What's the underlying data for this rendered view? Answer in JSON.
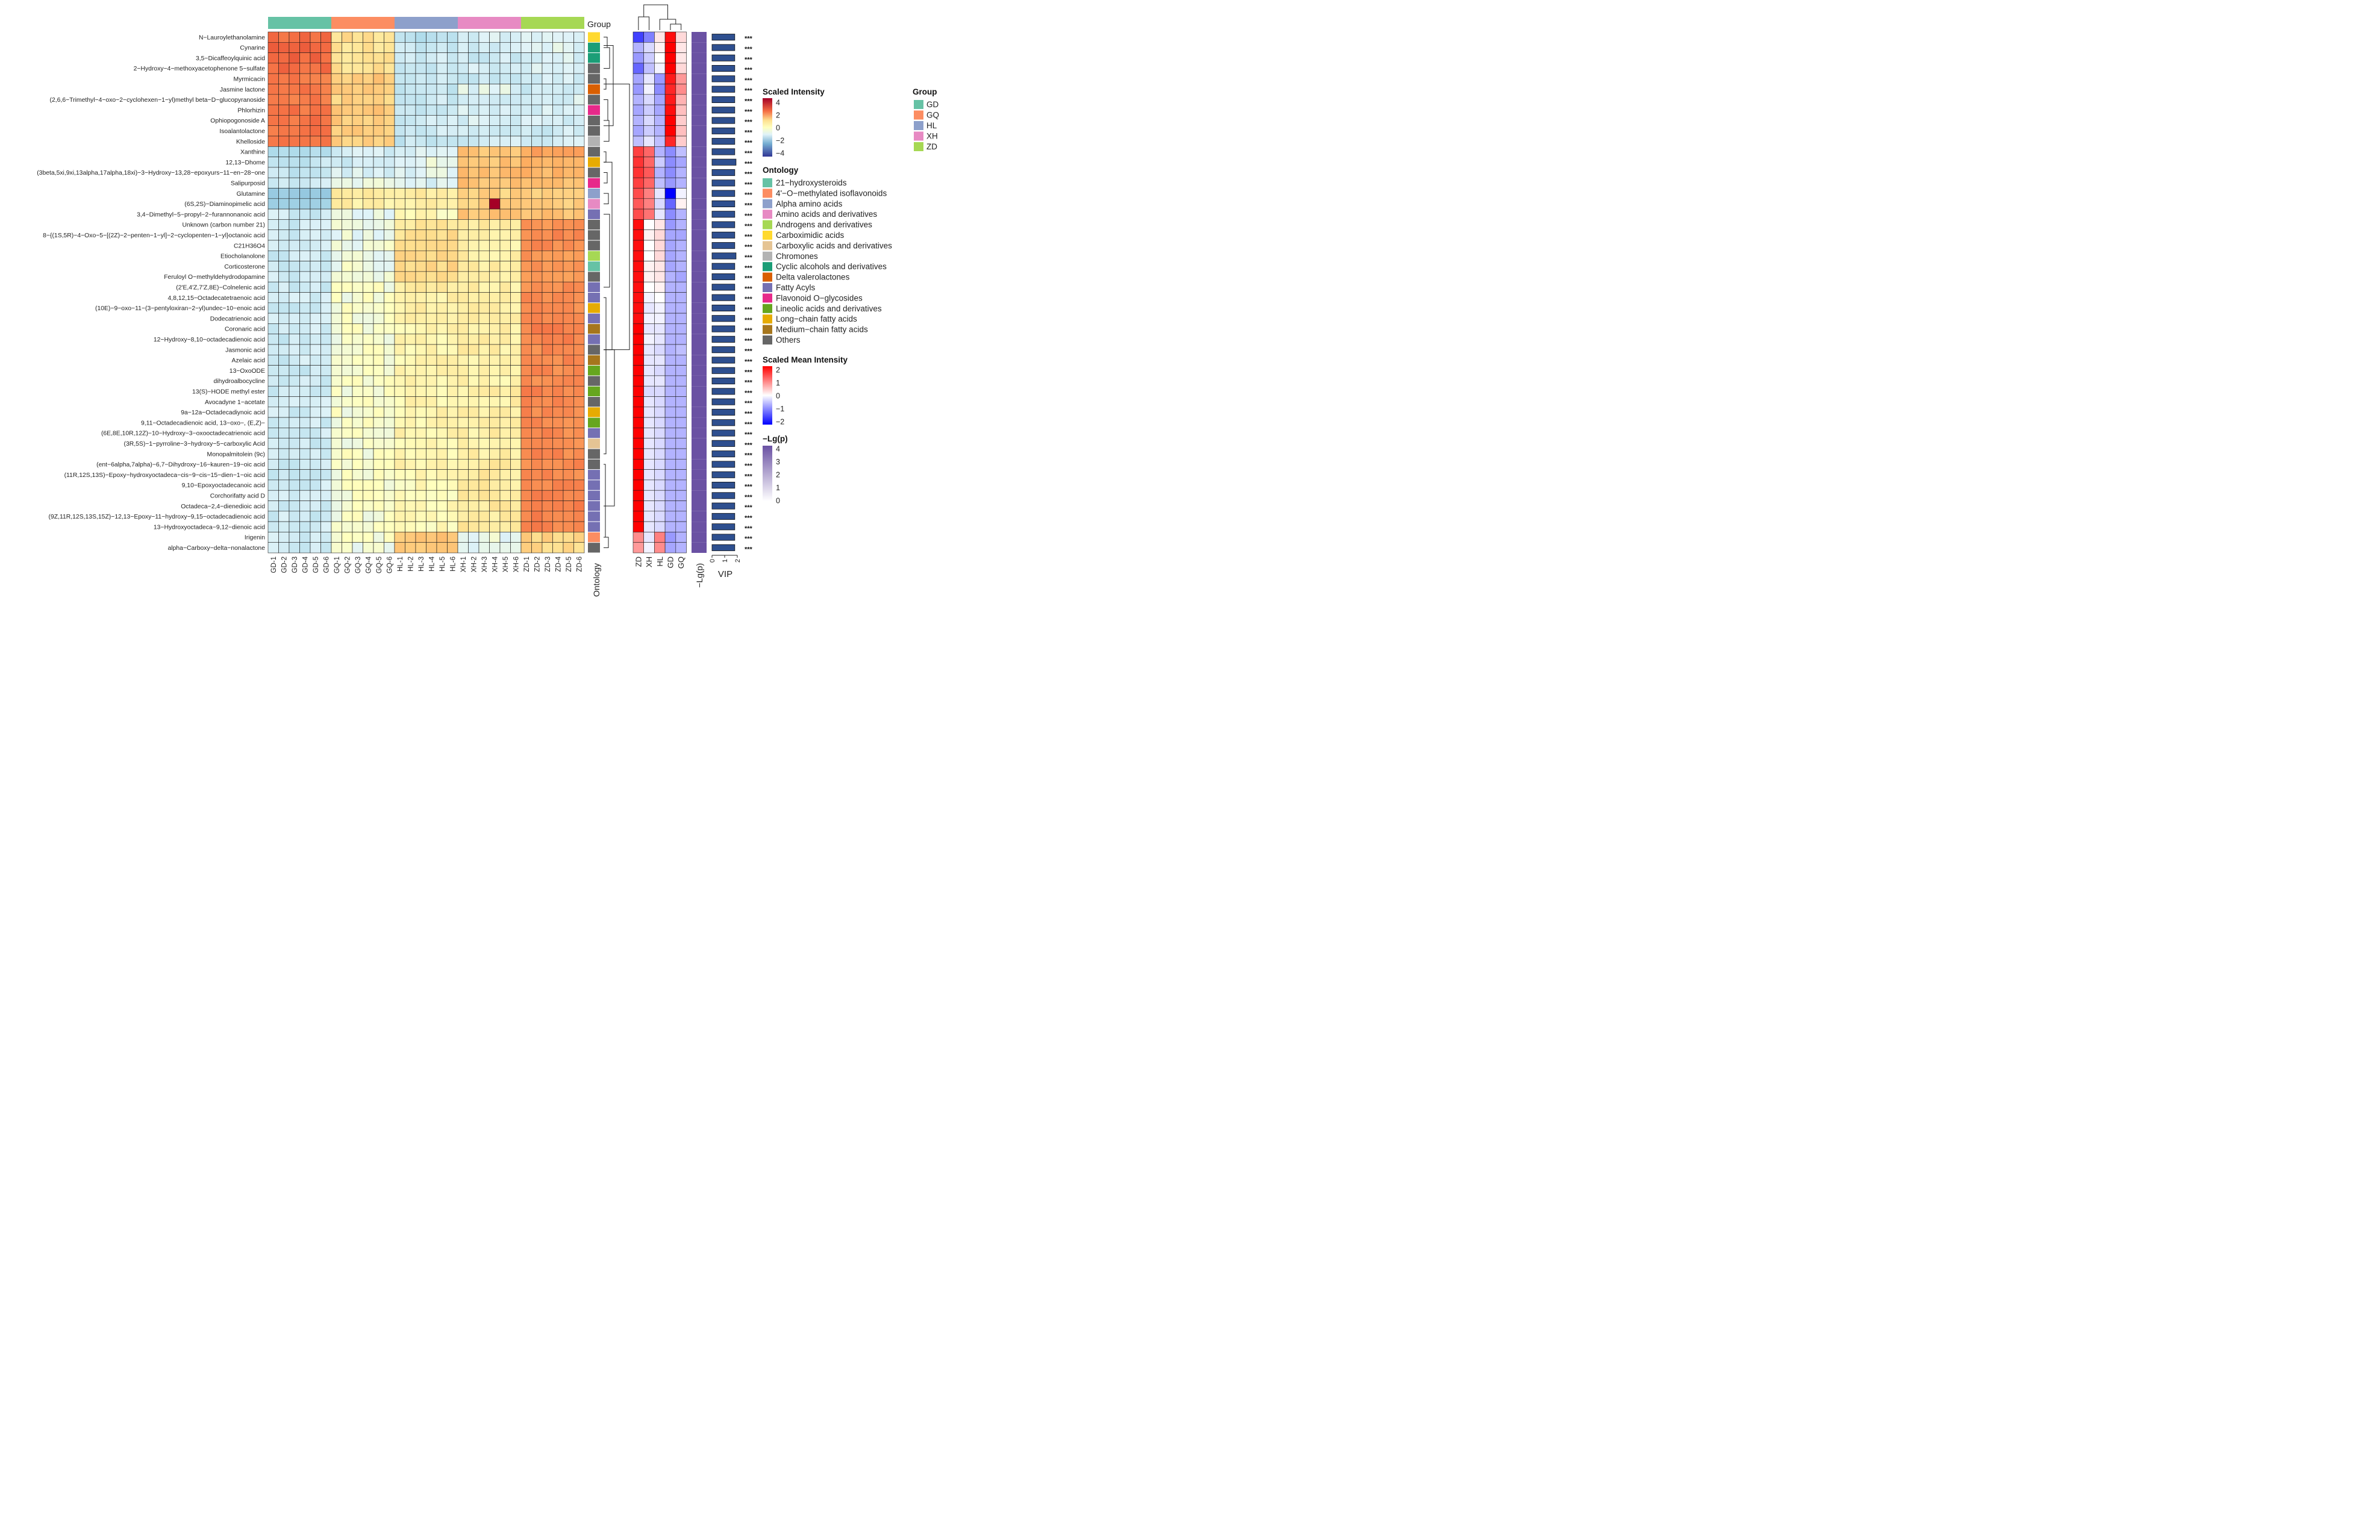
{
  "chart_data": {
    "type": "heatmap",
    "groups": [
      "GD",
      "GQ",
      "HL",
      "XH",
      "ZD"
    ],
    "group_colors": {
      "GD": "#66c2a5",
      "GQ": "#fc8d62",
      "HL": "#8da0cb",
      "XH": "#e78ac3",
      "ZD": "#a6d854"
    },
    "samples": [
      "GD-1",
      "GD-2",
      "GD-3",
      "GD-4",
      "GD-5",
      "GD-6",
      "GQ-1",
      "GQ-2",
      "GQ-3",
      "GQ-4",
      "GQ-5",
      "GQ-6",
      "HL-1",
      "HL-2",
      "HL-3",
      "HL-4",
      "HL-5",
      "HL-6",
      "XH-1",
      "XH-2",
      "XH-3",
      "XH-4",
      "XH-5",
      "XH-6",
      "ZD-1",
      "ZD-2",
      "ZD-3",
      "ZD-4",
      "ZD-5",
      "ZD-6"
    ],
    "metabolites": [
      {
        "name": "N−Lauroylethanolamine",
        "onto": "Carboximidic acids",
        "pattern": [
          2.2,
          0.6,
          -0.8,
          -0.5,
          -0.4
        ],
        "mean": [
          -1.5,
          -1.0,
          0.2,
          1.9,
          0.3
        ]
      },
      {
        "name": "Cynarine",
        "onto": "Cyclic alcohols and derivatives",
        "pattern": [
          2.4,
          0.5,
          -0.7,
          -0.6,
          -0.4
        ],
        "mean": [
          -0.6,
          -0.3,
          0.1,
          2.0,
          0.2
        ]
      },
      {
        "name": "3,5−Dicaffeoylquinic acid",
        "onto": "Cyclic alcohols and derivatives",
        "pattern": [
          2.3,
          0.5,
          -0.6,
          -0.6,
          -0.5
        ],
        "mean": [
          -0.8,
          -0.4,
          0.0,
          2.0,
          0.2
        ]
      },
      {
        "name": "2−Hydroxy−4−methoxyacetophenone 5−sulfate",
        "onto": "Others",
        "pattern": [
          2.2,
          0.6,
          -0.7,
          -0.5,
          -0.5
        ],
        "mean": [
          -1.2,
          -0.5,
          -0.1,
          2.0,
          0.3
        ]
      },
      {
        "name": "Myrmicacin",
        "onto": "Others",
        "pattern": [
          2.0,
          0.9,
          -0.7,
          -0.6,
          -0.5
        ],
        "mean": [
          -0.7,
          -0.2,
          -0.8,
          1.8,
          0.8
        ]
      },
      {
        "name": "Jasmine lactone",
        "onto": "Delta valerolactones",
        "pattern": [
          2.0,
          0.9,
          -0.7,
          -0.4,
          -0.6
        ],
        "mean": [
          -0.8,
          -0.1,
          -0.9,
          1.7,
          0.9
        ]
      },
      {
        "name": "(2,6,6−Trimethyl−4−oxo−2−cyclohexen−1−yl)methyl beta−D−glucopyranoside",
        "onto": "Others",
        "pattern": [
          2.0,
          0.8,
          -0.6,
          -0.5,
          -0.5
        ],
        "mean": [
          -0.6,
          -0.3,
          -0.7,
          1.8,
          0.6
        ]
      },
      {
        "name": "Phlorhizin",
        "onto": "Flavonoid O−glycosides",
        "pattern": [
          2.1,
          0.9,
          -0.6,
          -0.5,
          -0.5
        ],
        "mean": [
          -0.7,
          -0.4,
          -0.7,
          1.9,
          0.5
        ]
      },
      {
        "name": "Ophiopogonoside A",
        "onto": "Others",
        "pattern": [
          2.1,
          0.9,
          -0.6,
          -0.5,
          -0.5
        ],
        "mean": [
          -0.6,
          -0.3,
          -0.6,
          2.0,
          0.4
        ]
      },
      {
        "name": "Isoalantolactone",
        "onto": "Others",
        "pattern": [
          2.1,
          0.9,
          -0.6,
          -0.5,
          -0.6
        ],
        "mean": [
          -0.7,
          -0.4,
          -0.6,
          2.0,
          0.5
        ]
      },
      {
        "name": "Khelloside",
        "onto": "Chromones",
        "pattern": [
          2.0,
          0.8,
          -0.7,
          -0.6,
          -0.5
        ],
        "mean": [
          -0.5,
          -0.2,
          -0.5,
          1.7,
          0.4
        ]
      },
      {
        "name": "Xanthine",
        "onto": "Others",
        "pattern": [
          -1.0,
          -0.5,
          -0.4,
          1.0,
          1.4
        ],
        "mean": [
          1.5,
          1.2,
          -0.6,
          -0.9,
          -0.5
        ]
      },
      {
        "name": "12,13−Dhome",
        "onto": "Long−chain fatty acids",
        "pattern": [
          -0.7,
          -0.6,
          -0.3,
          1.0,
          1.2
        ],
        "mean": [
          1.6,
          1.2,
          -0.4,
          -0.9,
          -0.7
        ]
      },
      {
        "name": "(3beta,5xi,9xi,13alpha,17alpha,18xi)−3−Hydroxy−13,28−epoxyurs−11−en−28−one",
        "onto": "Others",
        "pattern": [
          -0.7,
          -0.5,
          -0.4,
          1.1,
          1.2
        ],
        "mean": [
          1.6,
          1.3,
          -0.6,
          -0.9,
          -0.6
        ]
      },
      {
        "name": "Salipurposid",
        "onto": "Flavonoid O−glycosides",
        "pattern": [
          -0.6,
          -0.3,
          -0.5,
          1.0,
          1.1
        ],
        "mean": [
          1.5,
          1.2,
          -0.5,
          -0.8,
          -0.6
        ]
      },
      {
        "name": "Glutamine",
        "onto": "Alpha amino acids",
        "pattern": [
          -1.5,
          0.4,
          0.4,
          0.8,
          0.9
        ],
        "mean": [
          1.4,
          1.0,
          -0.2,
          -2.0,
          -0.1
        ]
      },
      {
        "name": "(6S,2S)−Diaminopimelic acid",
        "onto": "Amino acids and derivatives",
        "pattern": [
          -1.3,
          0.3,
          0.3,
          0.8,
          0.8
        ],
        "mean": [
          1.3,
          1.0,
          -0.3,
          -1.2,
          0.1
        ]
      },
      {
        "name": "3,4−Dimethyl−5−propyl−2−furannonanoic acid",
        "onto": "Fatty Acyls",
        "pattern": [
          -0.6,
          -0.3,
          0.1,
          1.0,
          1.0
        ],
        "mean": [
          1.4,
          1.1,
          -0.2,
          -0.9,
          -0.6
        ]
      },
      {
        "name": "Unknown (carbon number 21)",
        "onto": "Others",
        "pattern": [
          -0.6,
          -0.3,
          0.5,
          0.4,
          1.7
        ],
        "mean": [
          1.9,
          0.0,
          0.2,
          -0.8,
          -0.6
        ]
      },
      {
        "name": "8−{(1S,5R)−4−Oxo−5−[(2Z)−2−penten−1−yl]−2−cyclopenten−1−yl}octanoic acid",
        "onto": "Others",
        "pattern": [
          -0.6,
          -0.3,
          0.6,
          0.3,
          1.8
        ],
        "mean": [
          1.9,
          0.1,
          0.3,
          -0.7,
          -0.7
        ]
      },
      {
        "name": "C21H36O4",
        "onto": "Others",
        "pattern": [
          -0.6,
          -0.2,
          0.6,
          0.2,
          1.8
        ],
        "mean": [
          1.9,
          0.0,
          0.3,
          -0.7,
          -0.6
        ]
      },
      {
        "name": "Etiocholanolone",
        "onto": "Androgens and derivatives",
        "pattern": [
          -0.6,
          -0.2,
          0.7,
          0.3,
          1.6
        ],
        "mean": [
          1.9,
          0.0,
          0.3,
          -0.7,
          -0.6
        ]
      },
      {
        "name": "Corticosterone",
        "onto": "21−hydroxysteroids",
        "pattern": [
          -0.6,
          -0.2,
          0.7,
          0.3,
          1.6
        ],
        "mean": [
          1.9,
          0.1,
          0.2,
          -0.7,
          -0.6
        ]
      },
      {
        "name": "Feruloyl O−methyldehydrodopamine",
        "onto": "Others",
        "pattern": [
          -0.6,
          -0.2,
          0.7,
          0.3,
          1.5
        ],
        "mean": [
          1.9,
          0.1,
          0.2,
          -0.6,
          -0.7
        ]
      },
      {
        "name": "(2'E,4'Z,7'Z,8E)−Colnelenic acid",
        "onto": "Fatty Acyls",
        "pattern": [
          -0.6,
          -0.1,
          0.4,
          0.3,
          1.7
        ],
        "mean": [
          1.9,
          0.0,
          0.1,
          -0.6,
          -0.6
        ]
      },
      {
        "name": "4,8,12,15−Octadecatetraenoic acid",
        "onto": "Fatty Acyls",
        "pattern": [
          -0.6,
          -0.1,
          0.3,
          0.3,
          1.8
        ],
        "mean": [
          1.9,
          -0.1,
          0.0,
          -0.6,
          -0.6
        ]
      },
      {
        "name": "(10E)−9−oxo−11−(3−pentyloxiran−2−yl)undec−10−enoic acid",
        "onto": "Long−chain fatty acids",
        "pattern": [
          -0.6,
          -0.1,
          0.3,
          0.3,
          1.8
        ],
        "mean": [
          1.9,
          -0.2,
          -0.1,
          -0.6,
          -0.6
        ]
      },
      {
        "name": "Dodecatrienoic acid",
        "onto": "Fatty Acyls",
        "pattern": [
          -0.6,
          -0.1,
          0.3,
          0.3,
          1.9
        ],
        "mean": [
          1.9,
          -0.1,
          -0.1,
          -0.6,
          -0.6
        ]
      },
      {
        "name": "Coronaric acid",
        "onto": "Medium−chain fatty acids",
        "pattern": [
          -0.6,
          -0.1,
          0.2,
          0.3,
          1.9
        ],
        "mean": [
          2.0,
          -0.2,
          -0.2,
          -0.6,
          -0.6
        ]
      },
      {
        "name": "12−Hydroxy−8,10−octadecadienoic acid",
        "onto": "Fatty Acyls",
        "pattern": [
          -0.6,
          -0.1,
          0.2,
          0.3,
          1.9
        ],
        "mean": [
          2.0,
          -0.1,
          -0.2,
          -0.6,
          -0.6
        ]
      },
      {
        "name": "Jasmonic acid",
        "onto": "Others",
        "pattern": [
          -0.6,
          -0.1,
          0.2,
          0.3,
          1.8
        ],
        "mean": [
          2.0,
          -0.2,
          -0.3,
          -0.6,
          -0.5
        ]
      },
      {
        "name": "Azelaic acid",
        "onto": "Medium−chain fatty acids",
        "pattern": [
          -0.6,
          -0.1,
          0.2,
          0.3,
          1.8
        ],
        "mean": [
          2.0,
          -0.2,
          -0.2,
          -0.6,
          -0.6
        ]
      },
      {
        "name": "13−OxoODE",
        "onto": "Lineolic acids and derivatives",
        "pattern": [
          -0.6,
          -0.1,
          0.2,
          0.3,
          1.8
        ],
        "mean": [
          2.0,
          -0.2,
          -0.3,
          -0.6,
          -0.6
        ]
      },
      {
        "name": "dihydroalbocycline",
        "onto": "Others",
        "pattern": [
          -0.6,
          -0.1,
          0.2,
          0.2,
          1.8
        ],
        "mean": [
          2.0,
          -0.2,
          -0.2,
          -0.6,
          -0.6
        ]
      },
      {
        "name": "13(S)−HODE methyl ester",
        "onto": "Lineolic acids and derivatives",
        "pattern": [
          -0.6,
          -0.1,
          0.2,
          0.3,
          1.9
        ],
        "mean": [
          2.0,
          -0.3,
          -0.3,
          -0.6,
          -0.6
        ]
      },
      {
        "name": "Avocadyne 1−acetate",
        "onto": "Others",
        "pattern": [
          -0.6,
          -0.1,
          0.2,
          0.3,
          1.8
        ],
        "mean": [
          2.0,
          -0.2,
          -0.3,
          -0.6,
          -0.6
        ]
      },
      {
        "name": "9a−12a−Octadecadiynoic acid",
        "onto": "Long−chain fatty acids",
        "pattern": [
          -0.6,
          -0.1,
          0.2,
          0.3,
          1.8
        ],
        "mean": [
          2.0,
          -0.2,
          -0.3,
          -0.6,
          -0.6
        ]
      },
      {
        "name": "9,11−Octadecadienoic acid, 13−oxo−, (E,Z)−",
        "onto": "Lineolic acids and derivatives",
        "pattern": [
          -0.6,
          -0.1,
          0.2,
          0.3,
          1.8
        ],
        "mean": [
          2.0,
          -0.2,
          -0.3,
          -0.6,
          -0.6
        ]
      },
      {
        "name": "(6E,8E,10R,12Z)−10−Hydroxy−3−oxooctadecatrienoic acid",
        "onto": "Fatty Acyls",
        "pattern": [
          -0.6,
          -0.1,
          0.2,
          0.3,
          1.8
        ],
        "mean": [
          2.0,
          -0.2,
          -0.3,
          -0.6,
          -0.6
        ]
      },
      {
        "name": "(3R,5S)−1−pyrroline−3−hydroxy−5−carboxylic Acid",
        "onto": "Carboxylic acids and derivatives",
        "pattern": [
          -0.6,
          -0.1,
          0.2,
          0.2,
          1.8
        ],
        "mean": [
          2.0,
          -0.2,
          -0.3,
          -0.6,
          -0.6
        ]
      },
      {
        "name": "Monopalmitolein (9c)",
        "onto": "Others",
        "pattern": [
          -0.6,
          -0.1,
          0.2,
          0.3,
          1.8
        ],
        "mean": [
          2.0,
          -0.2,
          -0.3,
          -0.6,
          -0.6
        ]
      },
      {
        "name": "(ent−6alpha,7alpha)−6,7−Dihydroxy−16−kauren−19−oic acid",
        "onto": "Others",
        "pattern": [
          -0.6,
          -0.1,
          0.2,
          0.4,
          1.8
        ],
        "mean": [
          2.0,
          -0.2,
          -0.3,
          -0.6,
          -0.6
        ]
      },
      {
        "name": "(11R,12S,13S)−Epoxy−hydroxyoctadeca−cis−9−cis−15−dien−1−oic acid",
        "onto": "Fatty Acyls",
        "pattern": [
          -0.6,
          -0.1,
          0.1,
          0.4,
          1.8
        ],
        "mean": [
          2.0,
          -0.2,
          -0.3,
          -0.6,
          -0.6
        ]
      },
      {
        "name": "9,10−Epoxyoctadecanoic acid",
        "onto": "Fatty Acyls",
        "pattern": [
          -0.6,
          -0.1,
          0.1,
          0.4,
          1.8
        ],
        "mean": [
          2.0,
          -0.2,
          -0.3,
          -0.6,
          -0.6
        ]
      },
      {
        "name": "Corchorifatty acid D",
        "onto": "Fatty Acyls",
        "pattern": [
          -0.6,
          -0.1,
          0.1,
          0.4,
          1.9
        ],
        "mean": [
          2.0,
          -0.2,
          -0.3,
          -0.6,
          -0.6
        ]
      },
      {
        "name": "Octadeca−2,4−dienedioic acid",
        "onto": "Fatty Acyls",
        "pattern": [
          -0.6,
          -0.1,
          0.1,
          0.4,
          1.9
        ],
        "mean": [
          2.0,
          -0.2,
          -0.3,
          -0.6,
          -0.6
        ]
      },
      {
        "name": "(9Z,11R,12S,13S,15Z)−12,13−Epoxy−11−hydroxy−9,15−octadecadienoic acid",
        "onto": "Fatty Acyls",
        "pattern": [
          -0.6,
          -0.1,
          0.1,
          0.4,
          1.9
        ],
        "mean": [
          2.0,
          -0.2,
          -0.3,
          -0.6,
          -0.6
        ]
      },
      {
        "name": "13−Hydroxyoctadeca−9,12−dienoic acid",
        "onto": "Fatty Acyls",
        "pattern": [
          -0.6,
          -0.1,
          0.1,
          0.5,
          1.9
        ],
        "mean": [
          2.0,
          -0.2,
          -0.3,
          -0.6,
          -0.6
        ]
      },
      {
        "name": "Irigenin",
        "onto": "4'−O−methylated isoflavonoids",
        "pattern": [
          -0.6,
          -0.1,
          1.0,
          -0.3,
          0.8
        ],
        "mean": [
          0.9,
          -0.2,
          1.0,
          -0.8,
          -0.6
        ]
      },
      {
        "name": "alpha−Carboxy−delta−nonalactone",
        "onto": "Others",
        "pattern": [
          -0.6,
          -0.2,
          1.0,
          -0.3,
          0.7
        ],
        "mean": [
          0.8,
          -0.1,
          0.9,
          -0.7,
          -0.6
        ]
      }
    ],
    "outliers": [
      {
        "metabolite": 16,
        "sample": 21,
        "value": 4.0
      }
    ],
    "mean_columns": [
      "ZD",
      "XH",
      "HL",
      "GD",
      "GQ"
    ],
    "neglogp_value": 4.0,
    "vip_values": [
      1.8,
      1.8,
      1.8,
      1.8,
      1.8,
      1.8,
      1.8,
      1.8,
      1.8,
      1.8,
      1.8,
      1.8,
      1.9,
      1.8,
      1.8,
      1.8,
      1.8,
      1.8,
      1.8,
      1.8,
      1.8,
      1.9,
      1.8,
      1.8,
      1.8,
      1.8,
      1.8,
      1.8,
      1.8,
      1.8,
      1.8,
      1.8,
      1.8,
      1.8,
      1.8,
      1.8,
      1.8,
      1.8,
      1.8,
      1.8,
      1.8,
      1.8,
      1.8,
      1.8,
      1.8,
      1.8,
      1.8,
      1.8,
      1.8,
      1.8
    ],
    "vip_axis": {
      "ticks": [
        "0",
        "1",
        "2"
      ],
      "label": "VIP",
      "max": 2
    },
    "significance": "***",
    "neglogp_label": "−Lg(p)",
    "group_label": "Group",
    "ontology_label": "Ontology",
    "legends": {
      "scaled_intensity": {
        "title": "Scaled Intensity",
        "ticks": [
          "4",
          "2",
          "0",
          "−2",
          "−4"
        ]
      },
      "group": {
        "title": "Group"
      },
      "ontology": {
        "title": "Ontology",
        "items": [
          {
            "name": "21−hydroxysteroids",
            "color": "#66c2a5"
          },
          {
            "name": "4'−O−methylated isoflavonoids",
            "color": "#fc8d62"
          },
          {
            "name": "Alpha amino acids",
            "color": "#8da0cb"
          },
          {
            "name": "Amino acids and derivatives",
            "color": "#e78ac3"
          },
          {
            "name": "Androgens and derivatives",
            "color": "#a6d854"
          },
          {
            "name": "Carboximidic acids",
            "color": "#ffd92f"
          },
          {
            "name": "Carboxylic acids and derivatives",
            "color": "#e5c494"
          },
          {
            "name": "Chromones",
            "color": "#b3b3b3"
          },
          {
            "name": "Cyclic alcohols and derivatives",
            "color": "#1b9e77"
          },
          {
            "name": "Delta valerolactones",
            "color": "#d95f02"
          },
          {
            "name": "Fatty Acyls",
            "color": "#7570b3"
          },
          {
            "name": "Flavonoid O−glycosides",
            "color": "#e7298a"
          },
          {
            "name": "Lineolic acids and derivatives",
            "color": "#66a61e"
          },
          {
            "name": "Long−chain fatty acids",
            "color": "#e6ab02"
          },
          {
            "name": "Medium−chain fatty acids",
            "color": "#a6761d"
          },
          {
            "name": "Others",
            "color": "#666666"
          }
        ]
      },
      "scaled_mean": {
        "title": "Scaled Mean Intensity",
        "ticks": [
          "2",
          "1",
          "0",
          "−1",
          "−2"
        ]
      },
      "neglogp": {
        "title": "−Lg(p)",
        "ticks": [
          "4",
          "3",
          "2",
          "1",
          "0"
        ]
      }
    }
  }
}
